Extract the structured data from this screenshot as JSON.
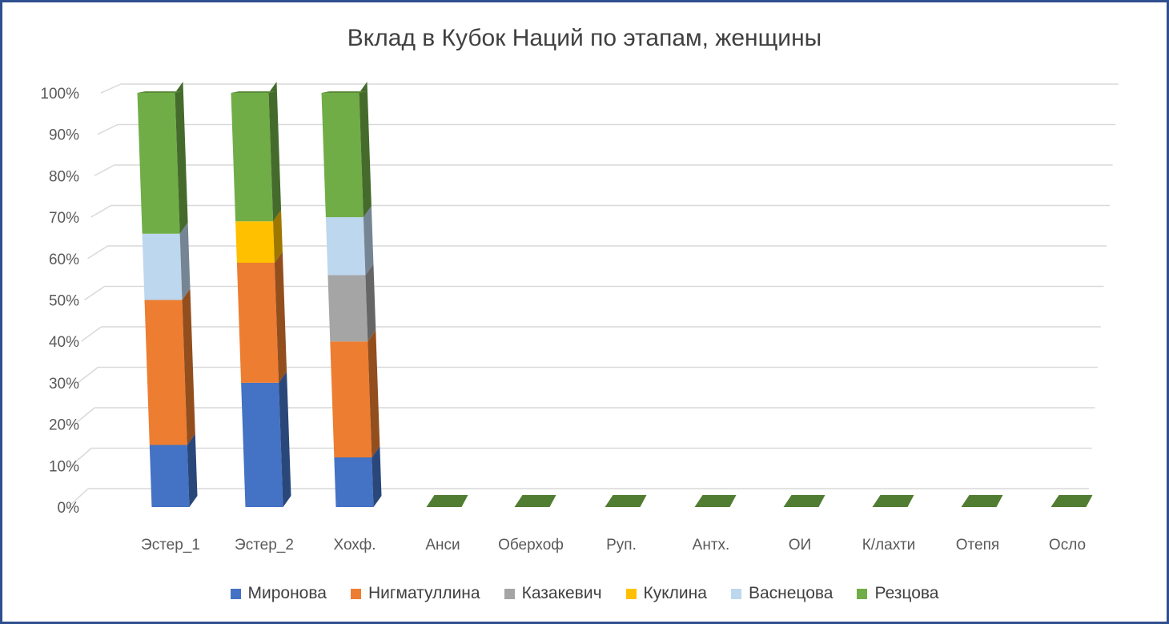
{
  "chart_data": {
    "type": "bar",
    "stacked": "percent",
    "title": "Вклад в Кубок Наций по этапам, женщины",
    "categories": [
      "Эстер_1",
      "Эстер_2",
      "Хохф.",
      "Анси",
      "Оберхоф",
      "Руп.",
      "Антх.",
      "ОИ",
      "К/лахти",
      "Отепя",
      "Осло"
    ],
    "y_ticks": [
      "0%",
      "10%",
      "20%",
      "30%",
      "40%",
      "50%",
      "60%",
      "70%",
      "80%",
      "90%",
      "100%"
    ],
    "ylim": [
      0,
      100
    ],
    "grid": true,
    "legend": "bottom",
    "series": [
      {
        "name": "Миронова",
        "color": "#4472c4",
        "values": [
          15,
          30,
          12,
          0,
          0,
          0,
          0,
          0,
          0,
          0,
          0
        ]
      },
      {
        "name": "Нигматуллина",
        "color": "#ed7d31",
        "values": [
          35,
          29,
          28,
          0,
          0,
          0,
          0,
          0,
          0,
          0,
          0
        ]
      },
      {
        "name": "Казакевич",
        "color": "#a5a5a5",
        "values": [
          0,
          0,
          16,
          0,
          0,
          0,
          0,
          0,
          0,
          0,
          0
        ]
      },
      {
        "name": "Куклина",
        "color": "#ffc000",
        "values": [
          0,
          10,
          0,
          0,
          0,
          0,
          0,
          0,
          0,
          0,
          0
        ]
      },
      {
        "name": "Васнецова",
        "color": "#bdd7ee",
        "values": [
          16,
          0,
          14,
          0,
          0,
          0,
          0,
          0,
          0,
          0,
          0
        ]
      },
      {
        "name": "Резцова",
        "color": "#70ad47",
        "values": [
          34,
          31,
          30,
          0,
          0,
          0,
          0,
          0,
          0,
          0,
          0
        ]
      }
    ]
  }
}
